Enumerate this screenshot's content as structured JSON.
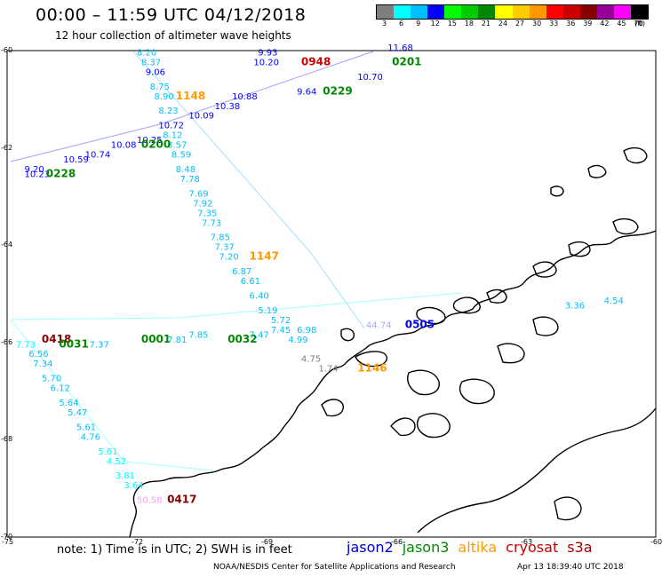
{
  "header": {
    "title": "00:00 – 11:59 UTC 04/12/2018",
    "subtitle": "12 hour collection of altimeter wave heights"
  },
  "color_scale": {
    "unit": "(ft)",
    "bins": [
      {
        "label": "3",
        "color": "#7f7f7f"
      },
      {
        "label": "6",
        "color": "#00ffff"
      },
      {
        "label": "9",
        "color": "#00bfff"
      },
      {
        "label": "12",
        "color": "#0000ff"
      },
      {
        "label": "15",
        "color": "#00ff00"
      },
      {
        "label": "18",
        "color": "#00cc00"
      },
      {
        "label": "21",
        "color": "#008800"
      },
      {
        "label": "24",
        "color": "#ffff00"
      },
      {
        "label": "27",
        "color": "#ffcc00"
      },
      {
        "label": "30",
        "color": "#ff9900"
      },
      {
        "label": "33",
        "color": "#ff0000"
      },
      {
        "label": "36",
        "color": "#cc0000"
      },
      {
        "label": "39",
        "color": "#880000"
      },
      {
        "label": "42",
        "color": "#990099"
      },
      {
        "label": "45",
        "color": "#ff00ff"
      },
      {
        "label": "70",
        "color": "#000000"
      }
    ]
  },
  "axes": {
    "lon_labels": [
      "-75",
      "-72",
      "-69",
      "-66",
      "-63",
      "-60"
    ],
    "lat_labels": [
      "-60",
      "-62",
      "-64",
      "-66",
      "-68",
      "-70"
    ]
  },
  "observations": [
    {
      "text": "8.20",
      "color": "#00bfff",
      "lon": -72.0,
      "lat": -60.1
    },
    {
      "text": "8.37",
      "color": "#00bfff",
      "lon": -71.9,
      "lat": -60.3
    },
    {
      "text": "9.06",
      "color": "#0000ff",
      "lon": -71.8,
      "lat": -60.5
    },
    {
      "text": "8.75",
      "color": "#00bfff",
      "lon": -71.7,
      "lat": -60.8
    },
    {
      "text": "8.90",
      "color": "#00bfff",
      "lon": -71.6,
      "lat": -61.0
    },
    {
      "text": "8.23",
      "color": "#00bfff",
      "lon": -71.5,
      "lat": -61.3
    },
    {
      "text": "8.12",
      "color": "#00bfff",
      "lon": -71.4,
      "lat": -61.8
    },
    {
      "text": "8.57",
      "color": "#00bfff",
      "lon": -71.3,
      "lat": -62.0
    },
    {
      "text": "8.59",
      "color": "#00bfff",
      "lon": -71.2,
      "lat": -62.2
    },
    {
      "text": "8.48",
      "color": "#00bfff",
      "lon": -71.1,
      "lat": -62.5
    },
    {
      "text": "7.78",
      "color": "#00bfff",
      "lon": -71.0,
      "lat": -62.7
    },
    {
      "text": "7.69",
      "color": "#00bfff",
      "lon": -70.8,
      "lat": -63.0
    },
    {
      "text": "7.92",
      "color": "#00bfff",
      "lon": -70.7,
      "lat": -63.2
    },
    {
      "text": "7.35",
      "color": "#00bfff",
      "lon": -70.6,
      "lat": -63.4
    },
    {
      "text": "7.73",
      "color": "#00bfff",
      "lon": -70.5,
      "lat": -63.6
    },
    {
      "text": "7.85",
      "color": "#00bfff",
      "lon": -70.3,
      "lat": -63.9
    },
    {
      "text": "7.37",
      "color": "#00bfff",
      "lon": -70.2,
      "lat": -64.1
    },
    {
      "text": "7.20",
      "color": "#00bfff",
      "lon": -70.1,
      "lat": -64.3
    },
    {
      "text": "1147",
      "color": "#ff9900",
      "lon": -69.4,
      "lat": -64.3
    },
    {
      "text": "6.87",
      "color": "#00bfff",
      "lon": -69.8,
      "lat": -64.6
    },
    {
      "text": "6.61",
      "color": "#00bfff",
      "lon": -69.6,
      "lat": -64.8
    },
    {
      "text": "6.40",
      "color": "#00bfff",
      "lon": -69.4,
      "lat": -65.1
    },
    {
      "text": "5.19",
      "color": "#00bfff",
      "lon": -69.2,
      "lat": -65.4
    },
    {
      "text": "5.72",
      "color": "#00bfff",
      "lon": -68.9,
      "lat": -65.6
    },
    {
      "text": "4.99",
      "color": "#00bfff",
      "lon": -68.5,
      "lat": -66.0
    },
    {
      "text": "4.75",
      "color": "#7f7f7f",
      "lon": -68.2,
      "lat": -66.4
    },
    {
      "text": "1.74",
      "color": "#7f7f7f",
      "lon": -67.8,
      "lat": -66.6
    },
    {
      "text": "1146",
      "color": "#ff9900",
      "lon": -66.9,
      "lat": -66.6
    },
    {
      "text": "9.93",
      "color": "#0000ff",
      "lon": -69.2,
      "lat": -60.1
    },
    {
      "text": "10.20",
      "color": "#0000ff",
      "lon": -69.3,
      "lat": -60.3
    },
    {
      "text": "0948",
      "color": "#cc0000",
      "lon": -68.2,
      "lat": -60.3
    },
    {
      "text": "11.68",
      "color": "#0000ff",
      "lon": -66.2,
      "lat": -60.0
    },
    {
      "text": "0201",
      "color": "#008800",
      "lon": -66.1,
      "lat": -60.3
    },
    {
      "text": "10.70",
      "color": "#0000ff",
      "lon": -66.9,
      "lat": -60.6
    },
    {
      "text": "0229",
      "color": "#008800",
      "lon": -67.7,
      "lat": -60.9
    },
    {
      "text": "9.64",
      "color": "#0000ff",
      "lon": -68.3,
      "lat": -60.9
    },
    {
      "text": "1148",
      "color": "#ff9900",
      "lon": -71.1,
      "lat": -61.0
    },
    {
      "text": "10.88",
      "color": "#0000ff",
      "lon": -69.8,
      "lat": -61.0
    },
    {
      "text": "10.38",
      "color": "#0000ff",
      "lon": -70.2,
      "lat": -61.2
    },
    {
      "text": "10.09",
      "color": "#0000ff",
      "lon": -70.8,
      "lat": -61.4
    },
    {
      "text": "10.72",
      "color": "#0000ff",
      "lon": -71.5,
      "lat": -61.6
    },
    {
      "text": "10.25",
      "color": "#0000ff",
      "lon": -72.0,
      "lat": -61.9
    },
    {
      "text": "0200",
      "color": "#008800",
      "lon": -71.9,
      "lat": -62.0
    },
    {
      "text": "10.08",
      "color": "#0000ff",
      "lon": -72.6,
      "lat": -62.0
    },
    {
      "text": "10.74",
      "color": "#0000ff",
      "lon": -73.2,
      "lat": -62.2
    },
    {
      "text": "10.59",
      "color": "#0000ff",
      "lon": -73.7,
      "lat": -62.3
    },
    {
      "text": "9.20",
      "color": "#0000ff",
      "lon": -74.6,
      "lat": -62.5
    },
    {
      "text": "10.23",
      "color": "#0000ff",
      "lon": -74.6,
      "lat": -62.6
    },
    {
      "text": "0228",
      "color": "#008800",
      "lon": -74.1,
      "lat": -62.6
    },
    {
      "text": "0418",
      "color": "#880000",
      "lon": -74.2,
      "lat": -66.0
    },
    {
      "text": "7.73",
      "color": "#00ffff",
      "lon": -74.8,
      "lat": -66.1
    },
    {
      "text": "0031",
      "color": "#008800",
      "lon": -73.8,
      "lat": -66.1
    },
    {
      "text": "7.37",
      "color": "#00bfff",
      "lon": -73.1,
      "lat": -66.1
    },
    {
      "text": "0001",
      "color": "#008800",
      "lon": -71.9,
      "lat": -66.0
    },
    {
      "text": "7.81",
      "color": "#00bfff",
      "lon": -71.3,
      "lat": -66.0
    },
    {
      "text": "7.85",
      "color": "#00bfff",
      "lon": -70.8,
      "lat": -65.9
    },
    {
      "text": "0032",
      "color": "#008800",
      "lon": -69.9,
      "lat": -66.0
    },
    {
      "text": "7.47",
      "color": "#00bfff",
      "lon": -69.4,
      "lat": -65.9
    },
    {
      "text": "7.45",
      "color": "#00bfff",
      "lon": -68.9,
      "lat": -65.8
    },
    {
      "text": "6.98",
      "color": "#00bfff",
      "lon": -68.3,
      "lat": -65.8
    },
    {
      "text": "44.74",
      "color": "#aaaaee",
      "lon": -66.7,
      "lat": -65.7
    },
    {
      "text": "0505",
      "color": "#0000ff",
      "lon": -65.8,
      "lat": -65.7
    },
    {
      "text": "6.56",
      "color": "#00bfff",
      "lon": -74.5,
      "lat": -66.3
    },
    {
      "text": "7.34",
      "color": "#00bfff",
      "lon": -74.4,
      "lat": -66.5
    },
    {
      "text": "5.70",
      "color": "#00bfff",
      "lon": -74.2,
      "lat": -66.8
    },
    {
      "text": "6.12",
      "color": "#00bfff",
      "lon": -74.0,
      "lat": -67.0
    },
    {
      "text": "5.64",
      "color": "#00bfff",
      "lon": -73.8,
      "lat": -67.3
    },
    {
      "text": "5.47",
      "color": "#00bfff",
      "lon": -73.6,
      "lat": -67.5
    },
    {
      "text": "5.61",
      "color": "#00bfff",
      "lon": -73.4,
      "lat": -67.8
    },
    {
      "text": "4.76",
      "color": "#00bfff",
      "lon": -73.3,
      "lat": -68.0
    },
    {
      "text": "5.61",
      "color": "#00ffff",
      "lon": -72.9,
      "lat": -68.3
    },
    {
      "text": "4.52",
      "color": "#00ffff",
      "lon": -72.7,
      "lat": -68.5
    },
    {
      "text": "3.81",
      "color": "#00ffff",
      "lon": -72.5,
      "lat": -68.8
    },
    {
      "text": "3.64",
      "color": "#00ffff",
      "lon": -72.3,
      "lat": -69.0
    },
    {
      "text": "50.58",
      "color": "#ff99ff",
      "lon": -72.0,
      "lat": -69.3
    },
    {
      "text": "0417",
      "color": "#880000",
      "lon": -71.3,
      "lat": -69.3
    },
    {
      "text": "3.36",
      "color": "#00bfff",
      "lon": -62.1,
      "lat": -65.3
    },
    {
      "text": "4.54",
      "color": "#00bfff",
      "lon": -61.2,
      "lat": -65.2
    }
  ],
  "notes": {
    "text": "note:  1) Time is in UTC;  2) SWH is in feet"
  },
  "satellites": [
    {
      "name": "jason2",
      "color": "#0000cc"
    },
    {
      "name": "jason3",
      "color": "#008800"
    },
    {
      "name": "altika",
      "color": "#ff9900"
    },
    {
      "name": "cryosat",
      "color": "#cc0000"
    },
    {
      "name": "s3a",
      "color": "#990000"
    }
  ],
  "footer": {
    "credit": "NOAA/NESDIS Center for Satellite Applications and Research",
    "timestamp": "Apr 13 18:39:40 UTC 2018"
  }
}
